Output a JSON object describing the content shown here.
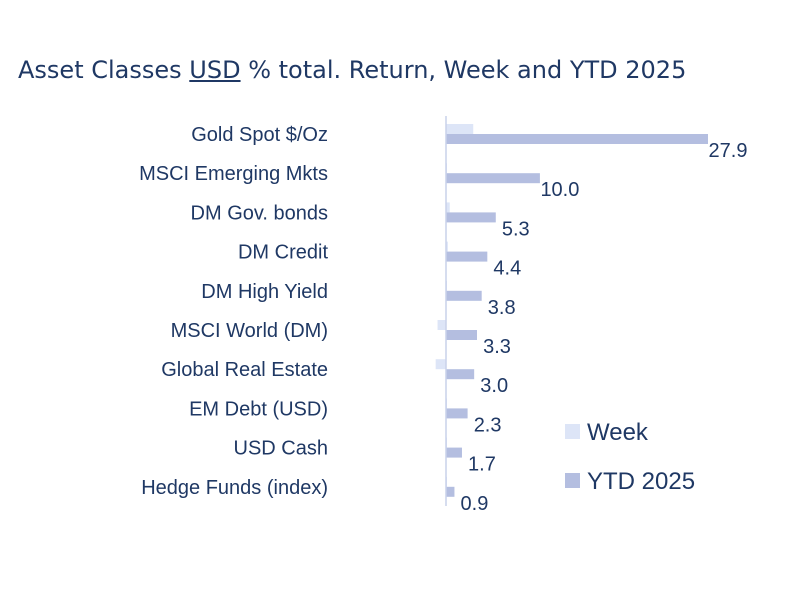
{
  "chart_data": {
    "type": "bar",
    "orientation": "horizontal",
    "title_parts": [
      "Asset Classes ",
      "USD",
      " % total. Return, Week and YTD 2025"
    ],
    "categories": [
      "Gold Spot   $/Oz",
      "MSCI Emerging Mkts",
      "DM Gov. bonds",
      "DM Credit",
      "DM High Yield",
      "MSCI World (DM)",
      "Global Real Estate",
      "EM Debt (USD)",
      "USD Cash",
      "Hedge Funds (index)"
    ],
    "series": [
      {
        "name": "Week",
        "color": "#dde5f7",
        "values": [
          2.9,
          0.1,
          0.4,
          0.2,
          0.1,
          -0.9,
          -1.1,
          0.1,
          0.05,
          0.1
        ]
      },
      {
        "name": "YTD 2025",
        "color": "#b4bee0",
        "values": [
          27.9,
          10.0,
          5.3,
          4.4,
          3.8,
          3.3,
          3.0,
          2.3,
          1.7,
          0.9
        ]
      }
    ],
    "data_labels": [
      "27.9",
      "10.0",
      "5.3",
      "4.4",
      "3.8",
      "3.3",
      "3.0",
      "2.3",
      "1.7",
      "0.9"
    ],
    "legend_position": "bottom-right",
    "grid": false
  }
}
